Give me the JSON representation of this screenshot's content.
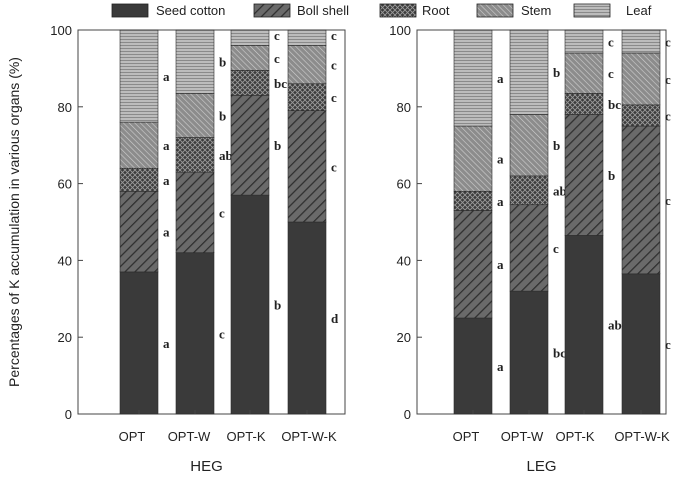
{
  "legend": {
    "placement": "top",
    "items": [
      {
        "label": "Seed cotton",
        "pattern": "solid-dark"
      },
      {
        "label": "Boll shell",
        "pattern": "diagonal-lines"
      },
      {
        "label": "Root",
        "pattern": "crosshatch"
      },
      {
        "label": "Stem",
        "pattern": "dense-diagonal"
      },
      {
        "label": "Leaf",
        "pattern": "horizontal-lines"
      }
    ]
  },
  "ylabel": "Percentages of K accumulation in various organs (%)",
  "colors": {
    "seed_cotton": "#3a3a3a",
    "boll_shell": "#5a5a5a",
    "root": "#4a4a4a",
    "stem": "#8a8a8a",
    "leaf": "#9a9a9a"
  },
  "chart_data": [
    {
      "type": "bar",
      "stacked": true,
      "xlabel": "HEG",
      "ylabel": "Percentages of K accumulation in various organs (%)",
      "ylim": [
        0,
        100
      ],
      "yticks": [
        0,
        20,
        40,
        60,
        80,
        100
      ],
      "categories": [
        "OPT",
        "OPT-W",
        "OPT-K",
        "OPT-W-K"
      ],
      "series": [
        {
          "name": "Seed cotton",
          "values": [
            37,
            42,
            57,
            50
          ],
          "letters": [
            "a",
            "c",
            "b",
            "d"
          ]
        },
        {
          "name": "Boll shell",
          "values": [
            21,
            21,
            26,
            29
          ],
          "letters": [
            "a",
            "c",
            "b",
            "c"
          ]
        },
        {
          "name": "Root",
          "values": [
            6,
            9,
            6.5,
            7
          ],
          "letters": [
            "a",
            "ab",
            "bc",
            "c"
          ]
        },
        {
          "name": "Stem",
          "values": [
            12,
            11.5,
            6.5,
            10
          ],
          "letters": [
            "a",
            "b",
            "c",
            "c"
          ]
        },
        {
          "name": "Leaf",
          "values": [
            24,
            16.5,
            4,
            4
          ],
          "letters": [
            "a",
            "b",
            "c",
            "c"
          ]
        }
      ]
    },
    {
      "type": "bar",
      "stacked": true,
      "xlabel": "LEG",
      "ylabel": "",
      "ylim": [
        0,
        100
      ],
      "yticks": [
        0,
        20,
        40,
        60,
        80,
        100
      ],
      "categories": [
        "OPT",
        "OPT-W",
        "OPT-K",
        "OPT-W-K"
      ],
      "series": [
        {
          "name": "Seed cotton",
          "values": [
            25,
            32,
            46.5,
            36.5
          ],
          "letters": [
            "a",
            "bc",
            "ab",
            "c"
          ]
        },
        {
          "name": "Boll shell",
          "values": [
            28,
            22.5,
            31.5,
            38.5
          ],
          "letters": [
            "a",
            "c",
            "b",
            "c"
          ]
        },
        {
          "name": "Root",
          "values": [
            5,
            7.5,
            5.5,
            5.5
          ],
          "letters": [
            "a",
            "ab",
            "bc",
            "c"
          ]
        },
        {
          "name": "Stem",
          "values": [
            17,
            16,
            10.5,
            13.5
          ],
          "letters": [
            "a",
            "b",
            "c",
            "c"
          ]
        },
        {
          "name": "Leaf",
          "values": [
            25,
            22,
            6,
            6
          ],
          "letters": [
            "a",
            "b",
            "c",
            "c"
          ]
        }
      ]
    }
  ]
}
